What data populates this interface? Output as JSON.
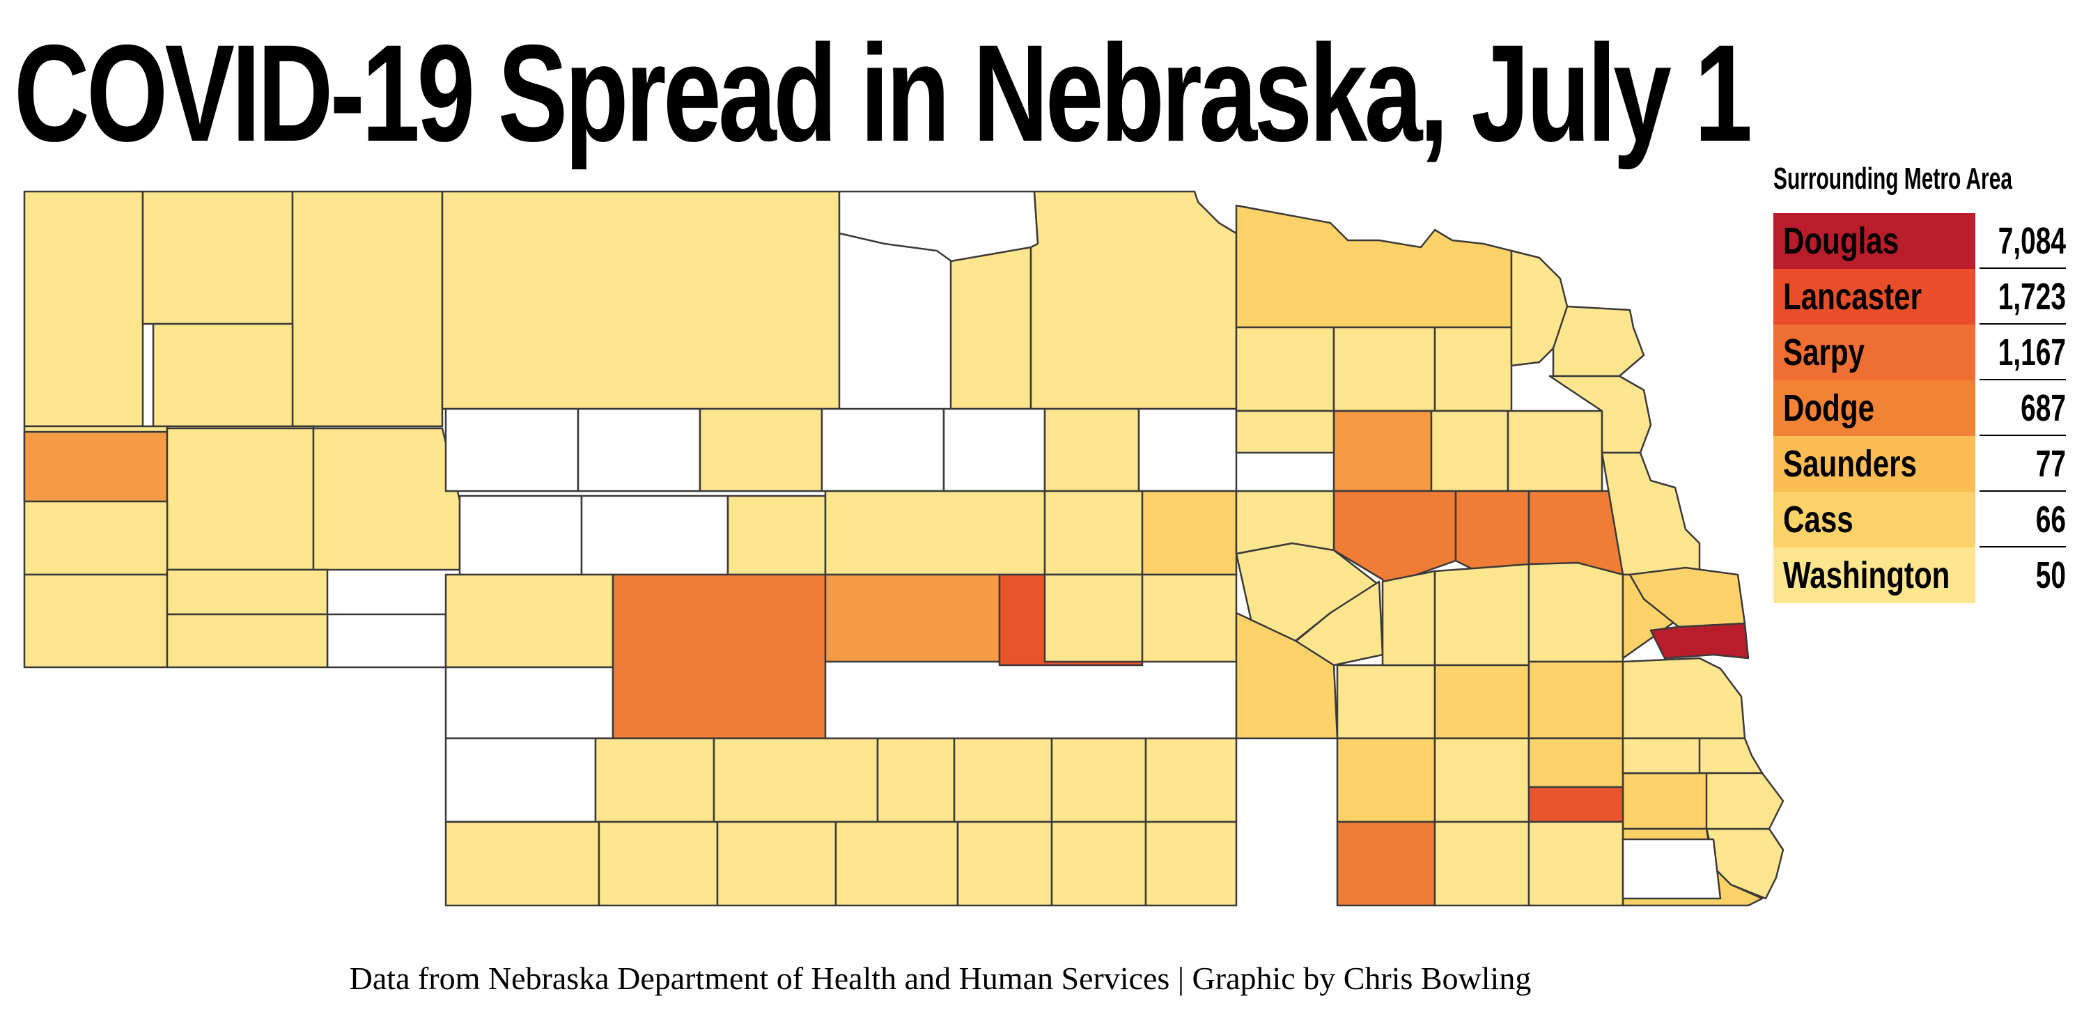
{
  "title": "COVID-19 Spread in Nebraska, July 1",
  "legend": {
    "title": "Surrounding Metro Area",
    "items": [
      {
        "county": "Douglas",
        "cases": "7,084",
        "color": "#b91d2c"
      },
      {
        "county": "Lancaster",
        "cases": "1,723",
        "color": "#e84e2a"
      },
      {
        "county": "Sarpy",
        "cases": "1,167",
        "color": "#ef6e33"
      },
      {
        "county": "Dodge",
        "cases": "687",
        "color": "#f28336"
      },
      {
        "county": "Saunders",
        "cases": "77",
        "color": "#fbbd54"
      },
      {
        "county": "Cass",
        "cases": "66",
        "color": "#fdd268"
      },
      {
        "county": "Washington",
        "cases": "50",
        "color": "#fde68e"
      }
    ]
  },
  "source": "Data from Nebraska Department of Health and Human Services | Graphic by Chris Bowling",
  "colors": {
    "none": "#ffffff",
    "level_1": "#fde68e",
    "level_2": "#fdd268",
    "level_3": "#f59a45",
    "level_4": "#f07d36",
    "level_5": "#e8552d",
    "level_6": "#b91d2c",
    "border": "#3a3a3a"
  },
  "map": {
    "name": "Nebraska counties",
    "counties": [
      {
        "level": 1
      },
      {
        "level": 1
      },
      {
        "level": 1
      },
      {
        "level": 1
      },
      {
        "level": 1
      },
      {
        "level": 0
      },
      {
        "level": 1
      },
      {
        "level": 1
      },
      {
        "level": 1
      },
      {
        "level": 1
      },
      {
        "level": 3
      },
      {
        "level": 1
      },
      {
        "level": 1
      },
      {
        "level": 1
      },
      {
        "level": 1
      },
      {
        "level": 1
      },
      {
        "level": 0
      },
      {
        "level": 1
      },
      {
        "level": 0
      },
      {
        "level": 0
      },
      {
        "level": 1
      },
      {
        "level": 0
      },
      {
        "level": 0
      },
      {
        "level": 1
      },
      {
        "level": 0
      },
      {
        "level": 0
      },
      {
        "level": 0
      },
      {
        "level": 1
      },
      {
        "level": 1
      },
      {
        "level": 1
      },
      {
        "level": 2
      },
      {
        "level": 1
      },
      {
        "level": 0
      },
      {
        "level": 4
      },
      {
        "level": 3
      },
      {
        "level": 5
      },
      {
        "level": 1
      },
      {
        "level": 1
      },
      {
        "level": 0
      },
      {
        "level": 1
      },
      {
        "level": 1
      },
      {
        "level": 1
      },
      {
        "level": 1
      },
      {
        "level": 1
      },
      {
        "level": 1
      },
      {
        "level": 1
      },
      {
        "level": 1
      },
      {
        "level": 1
      },
      {
        "level": 1
      },
      {
        "level": 1
      },
      {
        "level": 1
      },
      {
        "level": 1
      },
      {
        "level": 2
      },
      {
        "level": 1
      },
      {
        "level": 1
      },
      {
        "level": 1
      },
      {
        "level": 1
      },
      {
        "level": 1
      },
      {
        "level": 3
      },
      {
        "level": 1
      },
      {
        "level": 1
      },
      {
        "level": 1
      },
      {
        "level": 1
      },
      {
        "level": 4
      },
      {
        "level": 4
      },
      {
        "level": 4
      },
      {
        "level": 1
      },
      {
        "level": 1
      },
      {
        "level": 1
      },
      {
        "level": 1
      },
      {
        "level": 2
      },
      {
        "level": 1
      },
      {
        "level": 1
      },
      {
        "level": 1
      },
      {
        "level": 1
      },
      {
        "level": 2
      },
      {
        "level": 2
      },
      {
        "level": 2
      },
      {
        "level": 1
      },
      {
        "level": 1
      },
      {
        "level": 2
      },
      {
        "level": 2
      },
      {
        "level": 1
      },
      {
        "level": 5
      },
      {
        "level": 2
      },
      {
        "level": 1
      },
      {
        "level": 4
      },
      {
        "level": 1
      },
      {
        "level": 1
      },
      {
        "level": 2
      },
      {
        "level": 0
      },
      {
        "level": 1
      },
      {
        "level": 1
      },
      {
        "level": 2
      },
      {
        "level": 6
      },
      {
        "level": 5
      }
    ]
  }
}
